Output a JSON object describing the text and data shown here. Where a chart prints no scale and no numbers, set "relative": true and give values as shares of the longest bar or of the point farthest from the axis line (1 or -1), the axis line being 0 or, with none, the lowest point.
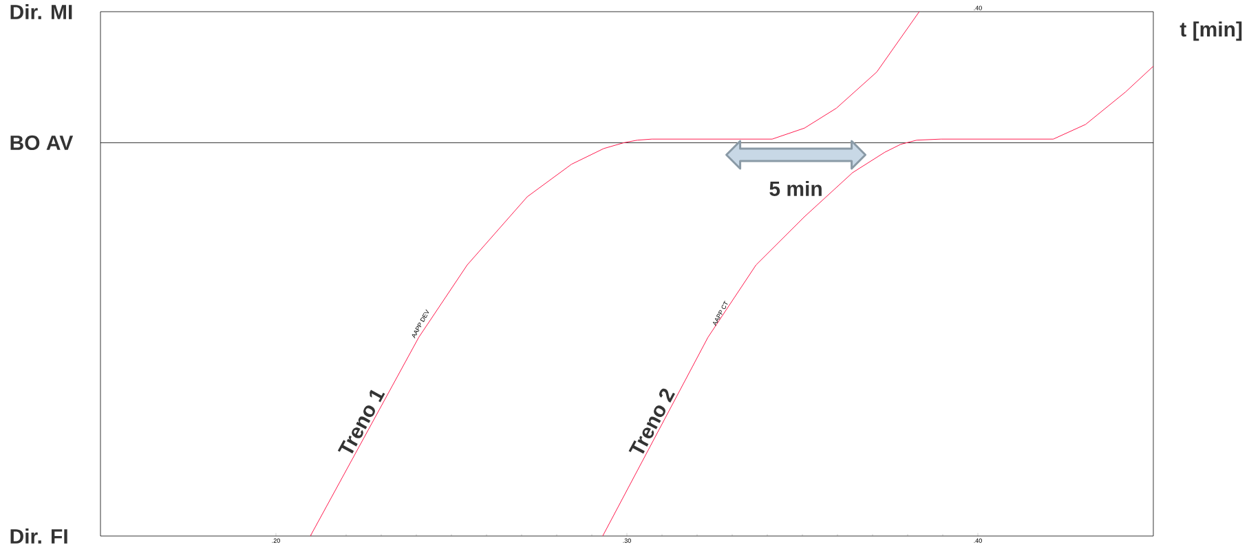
{
  "chart_data": {
    "type": "line",
    "xlabel": "t [min]",
    "relative": true,
    "xlim": [
      0.15,
      0.45
    ],
    "xticks": [
      {
        "value": 0.2,
        "label": ".20"
      },
      {
        "value": 0.3,
        "label": ".30"
      },
      {
        "value": 0.4,
        "label": ".40"
      }
    ],
    "marker": "none",
    "line_style": "solid",
    "ref_lines": [
      {
        "axis": "y",
        "value": 0.75,
        "label": "BO AV"
      }
    ],
    "series": [
      {
        "name": "Treno 1",
        "color": "#ff1a4d",
        "x": [
          0.2098,
          0.2407,
          0.2545,
          0.2716,
          0.2842,
          0.2934,
          0.2991,
          0.303,
          0.3071,
          0.3414,
          0.3506,
          0.3597,
          0.3712,
          0.3833
        ],
        "values": [
          0,
          0.379,
          0.517,
          0.647,
          0.709,
          0.739,
          0.75,
          0.755,
          0.757,
          0.757,
          0.778,
          0.816,
          0.885,
          1.0
        ]
      },
      {
        "name": "Treno 2",
        "color": "#ff1a4d",
        "x": [
          0.2931,
          0.3231,
          0.3368,
          0.3506,
          0.3643,
          0.3735,
          0.378,
          0.3826,
          0.3895,
          0.4215,
          0.4307,
          0.4421,
          0.45
        ],
        "values": [
          0,
          0.379,
          0.517,
          0.609,
          0.693,
          0.732,
          0.747,
          0.755,
          0.757,
          0.757,
          0.785,
          0.847,
          0.896
        ]
      }
    ],
    "annotations": [
      {
        "text": "AAPP DEV",
        "x": 0.2419,
        "y": 0.402
      },
      "AAPP CT",
      "5 min",
      "Dir. FI",
      "Dir. MI",
      ".40"
    ]
  }
}
